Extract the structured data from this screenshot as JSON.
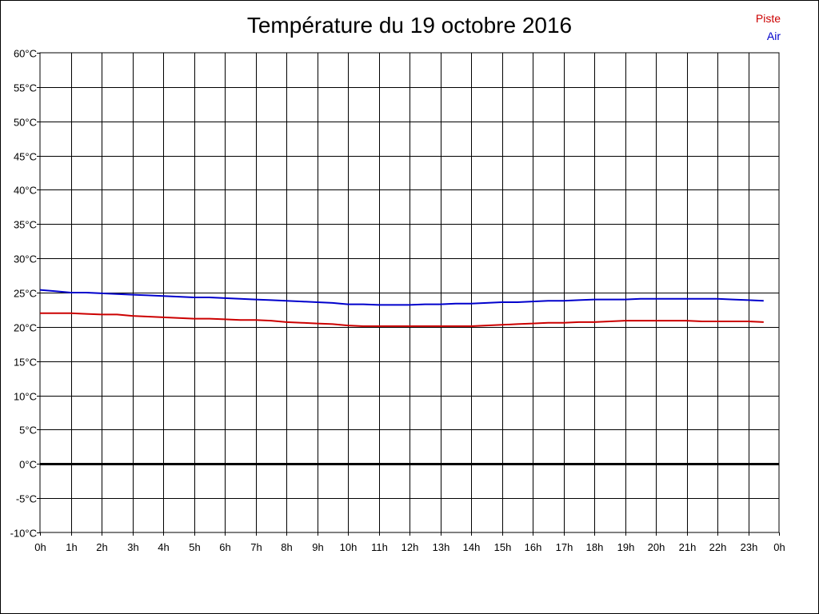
{
  "chart_data": {
    "type": "line",
    "title": "Température du 19 octobre 2016",
    "x_ticks": [
      "0h",
      "1h",
      "2h",
      "3h",
      "4h",
      "5h",
      "6h",
      "7h",
      "8h",
      "9h",
      "10h",
      "11h",
      "12h",
      "13h",
      "14h",
      "15h",
      "16h",
      "17h",
      "18h",
      "19h",
      "20h",
      "21h",
      "22h",
      "23h",
      "0h"
    ],
    "y_ticks": [
      "60°C",
      "55°C",
      "50°C",
      "45°C",
      "40°C",
      "35°C",
      "30°C",
      "25°C",
      "20°C",
      "15°C",
      "10°C",
      "5°C",
      "0°C",
      "-5°C",
      "-10°C"
    ],
    "xlim": [
      0,
      24
    ],
    "ylim": [
      -10,
      60
    ],
    "grid": true,
    "legend_position": "top-right",
    "x": [
      0,
      0.5,
      1,
      1.5,
      2,
      2.5,
      3,
      3.5,
      4,
      4.5,
      5,
      5.5,
      6,
      6.5,
      7,
      7.5,
      8,
      8.5,
      9,
      9.5,
      10,
      10.5,
      11,
      11.5,
      12,
      12.5,
      13,
      13.5,
      14,
      14.5,
      15,
      15.5,
      16,
      16.5,
      17,
      17.5,
      18,
      18.5,
      19,
      19.5,
      20,
      20.5,
      21,
      21.5,
      22,
      22.5,
      23,
      23.5
    ],
    "series": [
      {
        "name": "Piste",
        "color": "#cc0000",
        "values": [
          22.0,
          22.0,
          22.0,
          21.9,
          21.8,
          21.8,
          21.6,
          21.5,
          21.4,
          21.3,
          21.2,
          21.2,
          21.1,
          21.0,
          21.0,
          20.9,
          20.7,
          20.6,
          20.5,
          20.4,
          20.2,
          20.1,
          20.1,
          20.1,
          20.1,
          20.1,
          20.1,
          20.1,
          20.1,
          20.2,
          20.3,
          20.4,
          20.5,
          20.6,
          20.6,
          20.7,
          20.7,
          20.8,
          20.9,
          20.9,
          20.9,
          20.9,
          20.9,
          20.8,
          20.8,
          20.8,
          20.8,
          20.7
        ]
      },
      {
        "name": "Air",
        "color": "#0000cc",
        "values": [
          25.4,
          25.2,
          25.0,
          25.0,
          24.9,
          24.8,
          24.7,
          24.6,
          24.5,
          24.4,
          24.3,
          24.3,
          24.2,
          24.1,
          24.0,
          23.9,
          23.8,
          23.7,
          23.6,
          23.5,
          23.3,
          23.3,
          23.2,
          23.2,
          23.2,
          23.3,
          23.3,
          23.4,
          23.4,
          23.5,
          23.6,
          23.6,
          23.7,
          23.8,
          23.8,
          23.9,
          24.0,
          24.0,
          24.0,
          24.1,
          24.1,
          24.1,
          24.1,
          24.1,
          24.1,
          24.0,
          23.9,
          23.8
        ]
      }
    ]
  }
}
